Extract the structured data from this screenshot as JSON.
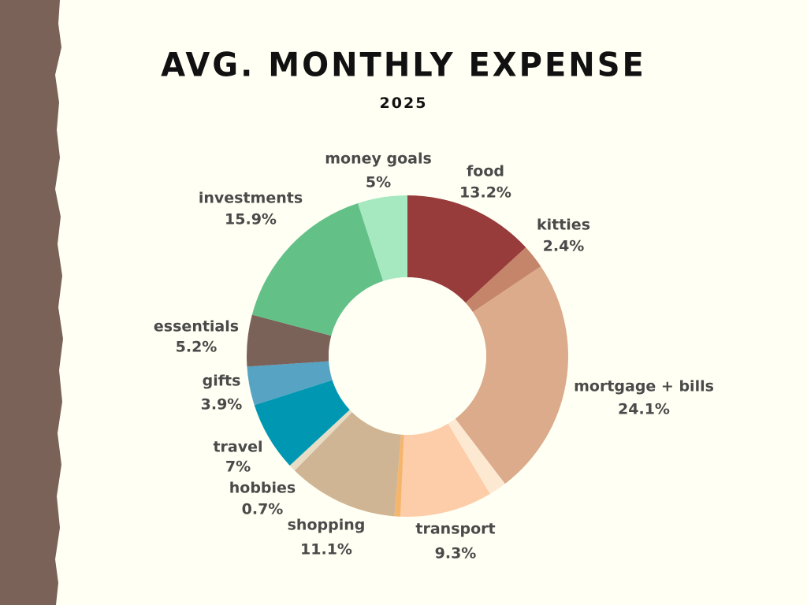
{
  "title": "AVG. MONTHLY EXPENSE",
  "subtitle": "2025",
  "colors": {
    "background": "#fffff3",
    "edge": "#7a6259"
  },
  "chart_data": {
    "type": "pie",
    "donut": true,
    "title": "AVG. MONTHLY EXPENSE",
    "subtitle": "2025",
    "slices": [
      {
        "label": "food",
        "value_label": "13.2%",
        "value": 13.2,
        "color": "#973b3b"
      },
      {
        "label": "kitties",
        "value_label": "2.4%",
        "value": 2.4,
        "color": "#c4856a"
      },
      {
        "label": "mortgage + bills",
        "value_label": "24.1%",
        "value": 24.1,
        "color": "#dbab8b"
      },
      {
        "label": "",
        "value_label": "",
        "value": 1.8,
        "color": "#fde9d2"
      },
      {
        "label": "transport",
        "value_label": "9.3%",
        "value": 9.3,
        "color": "#fdcca8"
      },
      {
        "label": "",
        "value_label": "",
        "value": 0.6,
        "color": "#f6b56d"
      },
      {
        "label": "shopping",
        "value_label": "11.1%",
        "value": 11.1,
        "color": "#cfb594"
      },
      {
        "label": "hobbies",
        "value_label": "0.7%",
        "value": 0.7,
        "color": "#e8dcc4"
      },
      {
        "label": "travel",
        "value_label": "7%",
        "value": 7.0,
        "color": "#0097b2"
      },
      {
        "label": "gifts",
        "value_label": "3.9%",
        "value": 3.9,
        "color": "#56a3c3"
      },
      {
        "label": "essentials",
        "value_label": "5.2%",
        "value": 5.2,
        "color": "#7a6259"
      },
      {
        "label": "investments",
        "value_label": "15.9%",
        "value": 15.9,
        "color": "#63c188"
      },
      {
        "label": "money goals",
        "value_label": "5%",
        "value": 5.0,
        "color": "#a6e9c0"
      }
    ]
  }
}
